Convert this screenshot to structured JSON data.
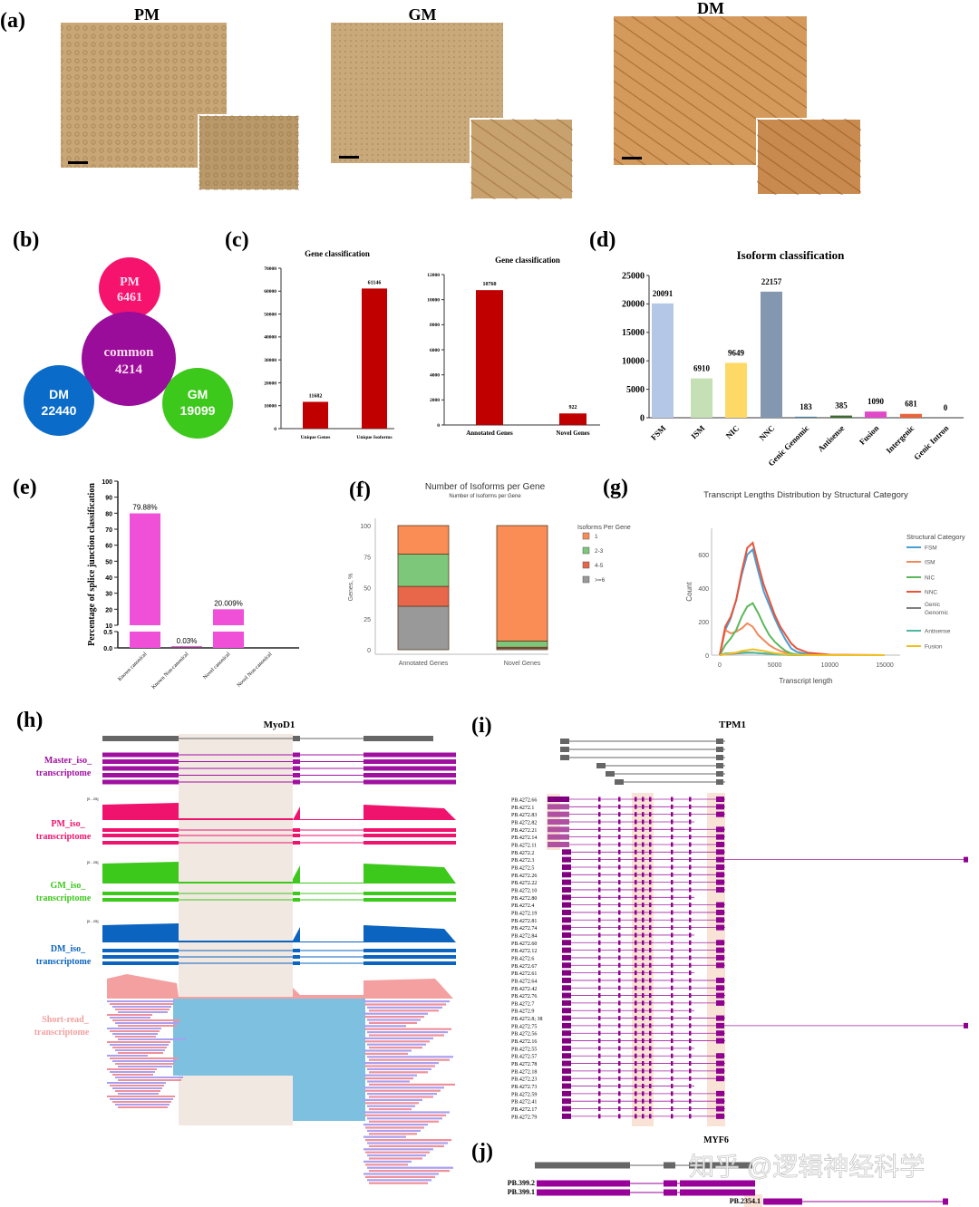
{
  "panel_labels": [
    "(a)",
    "(b)",
    "(c)",
    "(d)",
    "(e)",
    "(f)",
    "(g)",
    "(h)",
    "(i)",
    "(j)"
  ],
  "panel_a": {
    "titles": [
      "PM",
      "GM",
      "DM"
    ]
  },
  "panel_b": {
    "circles": [
      {
        "name": "PM",
        "value": "6461",
        "color": "#f5136e"
      },
      {
        "name": "common",
        "value": "4214",
        "color": "#9a0c9a"
      },
      {
        "name": "DM",
        "value": "22440",
        "color": "#0a6cc8"
      },
      {
        "name": "GM",
        "value": "19099",
        "color": "#3dc81c"
      }
    ]
  },
  "chart_data": [
    {
      "id": "c1",
      "type": "bar",
      "title": "Gene classification",
      "categories": [
        "Unique Genes",
        "Unique Isoforms"
      ],
      "values": [
        11682,
        61146
      ],
      "ylim": [
        0,
        70000
      ],
      "yticks": [
        0,
        10000,
        20000,
        30000,
        40000,
        50000,
        60000,
        70000
      ],
      "color": "#c00000"
    },
    {
      "id": "c2",
      "type": "bar",
      "title": "Gene classification",
      "categories": [
        "Annotated Genes",
        "Novel Genes"
      ],
      "values": [
        10760,
        922
      ],
      "ylim": [
        0,
        12000
      ],
      "yticks": [
        0,
        2000,
        4000,
        6000,
        8000,
        10000,
        12000
      ],
      "color": "#c00000"
    },
    {
      "id": "d",
      "type": "bar",
      "title": "Isoform  classification",
      "categories": [
        "FSM",
        "ISM",
        "NIC",
        "NNC",
        "Genic Genomic",
        "Antisense",
        "Fusion",
        "Intergenic",
        "Genic Intron"
      ],
      "values": [
        20091,
        6910,
        9649,
        22157,
        183,
        385,
        1090,
        681,
        0
      ],
      "ylim": [
        0,
        25000
      ],
      "yticks": [
        0,
        5000,
        10000,
        15000,
        20000,
        25000
      ],
      "colors": [
        "#b4c7e7",
        "#c5e0b4",
        "#ffd966",
        "#8497b0",
        "#4a7fa0",
        "#3d6b30",
        "#e04ac8",
        "#e8653c",
        "#888888"
      ]
    },
    {
      "id": "e",
      "type": "bar",
      "ylabel": "Percentage of splice junction classification",
      "categories": [
        "Known canonical",
        "Known Non-canonical",
        "Novel canonical",
        "Novel Non-canonical"
      ],
      "values": [
        79.88,
        0.03,
        20.009,
        0
      ],
      "data_labels": [
        "79.88%",
        "0.03%",
        "20.009%",
        ""
      ],
      "ylim": [
        0,
        100
      ],
      "axis_break": [
        0.5,
        10
      ],
      "yticks_upper": [
        10,
        20,
        30,
        40,
        50,
        60,
        70,
        80,
        90,
        100
      ],
      "yticks_lower": [
        "0.0",
        "0.5"
      ],
      "color": "#f050d8"
    },
    {
      "id": "f",
      "type": "bar",
      "stacked": true,
      "title": "Number of Isoforms per Gene",
      "subtitle": "Number of Isoforms per Gene",
      "ylabel": "Genes, %",
      "categories": [
        "Annotated Genes",
        "Novel Genes"
      ],
      "legend_title": "Isoforms Per Gene",
      "legend": "right",
      "ylim": [
        0,
        100
      ],
      "yticks": [
        0,
        25,
        50,
        75,
        100
      ],
      "series": [
        {
          "name": ">=6",
          "values": [
            35,
            1
          ],
          "color": "#999999"
        },
        {
          "name": "4-5",
          "values": [
            16,
            1
          ],
          "color": "#e8664a"
        },
        {
          "name": "2-3",
          "values": [
            26,
            5
          ],
          "color": "#7cc77a"
        },
        {
          "name": "1",
          "values": [
            23,
            93
          ],
          "color": "#fa8c55"
        }
      ]
    },
    {
      "id": "g",
      "type": "line",
      "title": "Transcript Lengths Distribution by Structural Category",
      "xlabel": "Transcript length",
      "ylabel": "Count",
      "legend_title": "Structural Category",
      "legend": "right",
      "xlim": [
        0,
        16000
      ],
      "ylim": [
        0,
        720
      ],
      "xticks": [
        0,
        5000,
        10000,
        15000
      ],
      "yticks": [
        0,
        200,
        400,
        600
      ],
      "x": [
        0,
        500,
        1000,
        1500,
        2000,
        2500,
        3000,
        3500,
        4000,
        4500,
        5000,
        5500,
        6000,
        6500,
        7000,
        8000,
        10000,
        15000
      ],
      "series": [
        {
          "name": "FSM",
          "color": "#4a9fd4",
          "values": [
            0,
            150,
            220,
            330,
            480,
            600,
            630,
            500,
            380,
            300,
            220,
            150,
            90,
            40,
            20,
            5,
            0,
            0
          ]
        },
        {
          "name": "ISM",
          "color": "#f08a5d",
          "values": [
            0,
            150,
            130,
            140,
            160,
            190,
            170,
            120,
            90,
            60,
            40,
            25,
            15,
            8,
            4,
            1,
            0,
            0
          ]
        },
        {
          "name": "NIC",
          "color": "#5bb85b",
          "values": [
            0,
            60,
            100,
            150,
            230,
            290,
            310,
            250,
            180,
            120,
            80,
            50,
            25,
            10,
            5,
            0,
            0,
            0
          ]
        },
        {
          "name": "NNC",
          "color": "#e8553c",
          "values": [
            0,
            170,
            230,
            330,
            500,
            640,
            670,
            540,
            420,
            330,
            240,
            170,
            120,
            70,
            40,
            15,
            3,
            0
          ]
        },
        {
          "name": "Genic Genomic",
          "color": "#7f7f7f",
          "values": [
            0,
            5,
            8,
            10,
            12,
            14,
            15,
            12,
            10,
            8,
            6,
            4,
            3,
            2,
            1,
            0,
            0,
            0
          ]
        },
        {
          "name": "Antisense",
          "color": "#4cb8a0",
          "values": [
            0,
            10,
            12,
            14,
            15,
            16,
            15,
            12,
            10,
            8,
            5,
            3,
            2,
            1,
            0,
            0,
            0,
            0
          ]
        },
        {
          "name": "Fusion",
          "color": "#f0c020",
          "values": [
            0,
            5,
            10,
            15,
            25,
            30,
            35,
            30,
            25,
            18,
            12,
            8,
            5,
            3,
            2,
            0,
            0,
            0
          ]
        }
      ]
    }
  ],
  "panel_h": {
    "gene": "MyoD1",
    "range_label": "[0 - 25]",
    "tracks": [
      {
        "label1": "Master_iso_",
        "label2": "transcriptome",
        "color": "#a010a0"
      },
      {
        "label1": "PM_iso_",
        "label2": "transcriptome",
        "color": "#f0136e"
      },
      {
        "label1": "GM_iso_",
        "label2": "transcriptome",
        "color": "#3dc81c"
      },
      {
        "label1": "DM_iso_",
        "label2": "transcriptome",
        "color": "#0a64c0"
      },
      {
        "label1": "Short-read_",
        "label2": "transcriptome",
        "color": "#f4a0a0"
      }
    ]
  },
  "panel_i": {
    "gene": "TPM1",
    "isoforms": [
      "PB.4272.66",
      "PB.4272.1",
      "PB.4272.83",
      "PB.4272.82",
      "PB.4272.21",
      "PB.4272.14",
      "PB.4272.11",
      "PB.4272.2",
      "PB.4272.3",
      "PB.4272.5",
      "PB.4272.26",
      "PB.4272.22",
      "PB.4272.10",
      "PB.4272.80",
      "PB.4272.4",
      "PB.4272.19",
      "PB.4272.81",
      "PB.4272.74",
      "PB.4272.84",
      "PB.4272.60",
      "PB.4272.12",
      "PB.4272.6",
      "PB.4272.67",
      "PB.4272.61",
      "PB.4272.64",
      "PB.4272.42",
      "PB.4272.76",
      "PB.4272.7",
      "PB.4272.9",
      "PB.4272.8; 38",
      "PB.4272.75",
      "PB.4272.56",
      "PB.4272.16",
      "PB.4272.55",
      "PB.4272.57",
      "PB.4272.78",
      "PB.4272.18",
      "PB.4272.23",
      "PB.4272.73",
      "PB.4272.59",
      "PB.4272.41",
      "PB.4272.17",
      "PB.4272.79"
    ]
  },
  "panel_j": {
    "gene": "MYF6",
    "isoforms": [
      "PB.399.2",
      "PB.399.1",
      "PB.2354.1"
    ]
  },
  "watermark": "知乎 @逻辑神经科学"
}
